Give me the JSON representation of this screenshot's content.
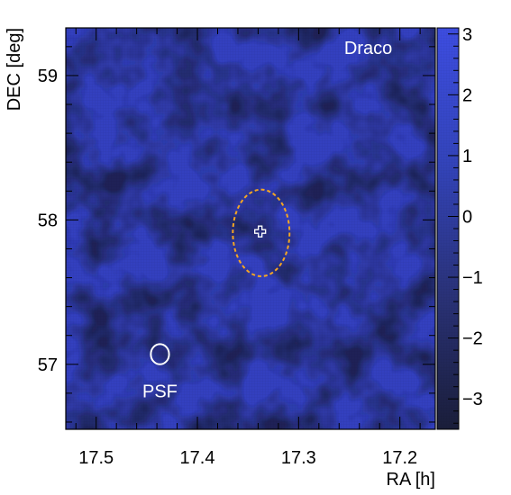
{
  "chart_data": {
    "type": "heatmap",
    "title": "",
    "xlabel": "RA [h]",
    "ylabel": "DEC [deg]",
    "xlim": [
      17.53,
      17.165
    ],
    "ylim": [
      56.55,
      59.33
    ],
    "x_reversed": true,
    "x_ticks": [
      17.5,
      17.4,
      17.3,
      17.2
    ],
    "x_tick_labels": [
      "17.5",
      "17.4",
      "17.3",
      "17.2"
    ],
    "y_ticks": [
      57,
      58,
      59
    ],
    "y_tick_labels": [
      "57",
      "58",
      "59"
    ],
    "colorbar": {
      "range": [
        -3.5,
        3.1
      ],
      "ticks": [
        -3,
        -2,
        -1,
        0,
        1,
        2,
        3
      ],
      "tick_labels": [
        "−3",
        "−2",
        "−1",
        "0",
        "1",
        "2",
        "3"
      ],
      "colors": [
        "#1a1e3a",
        "#2a3278",
        "#3344bb",
        "#3d4de0"
      ]
    },
    "source": {
      "name": "Draco",
      "ra": 17.338,
      "dec": 57.92,
      "marker": "cross",
      "marker_color": "#ffffff"
    },
    "source_region": {
      "ra": 17.337,
      "dec": 57.91,
      "ra_radius": 0.028,
      "dec_radius": 0.3,
      "style": "dashed",
      "color": "#f5a623"
    },
    "psf": {
      "label": "PSF",
      "ra": 17.437,
      "dec": 57.07,
      "ra_radius": 0.009,
      "dec_radius": 0.07,
      "color": "#ffffff"
    },
    "grid": false
  }
}
